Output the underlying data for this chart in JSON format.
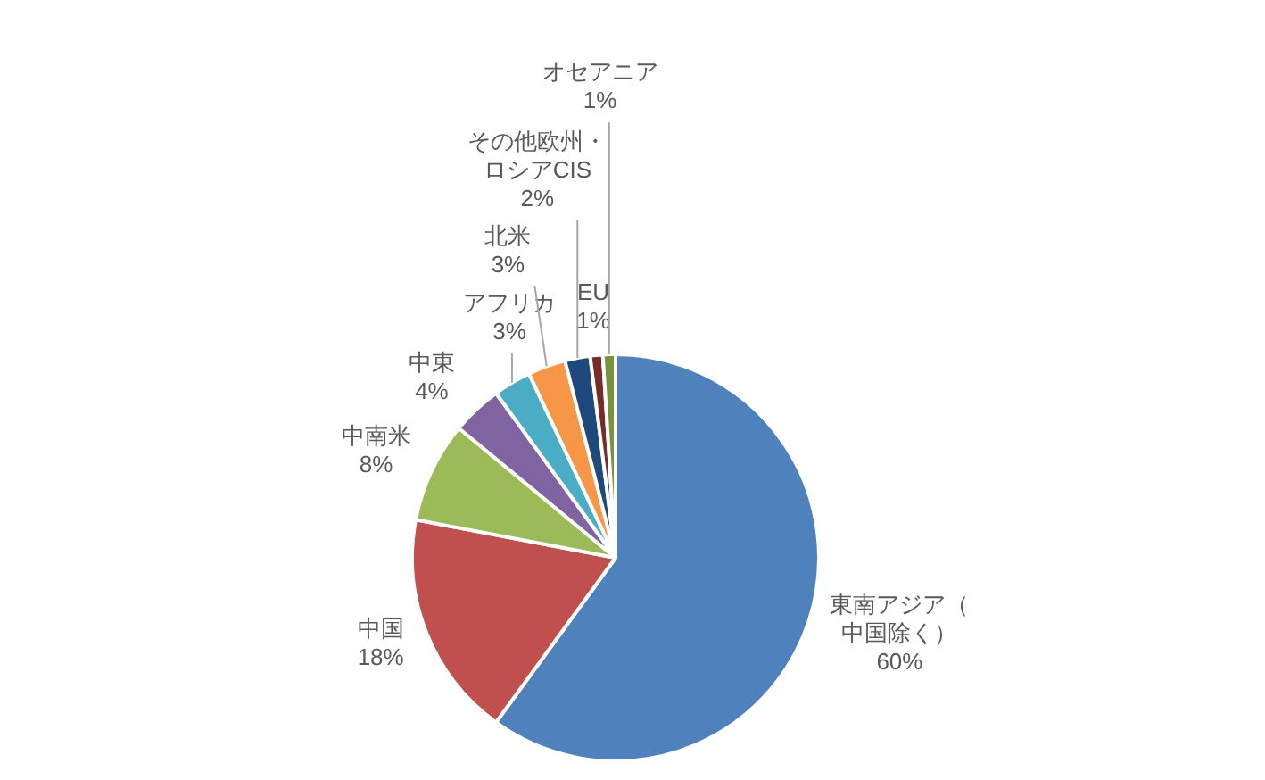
{
  "chart_data": {
    "type": "pie",
    "categories": [
      "東南アジア（中国除く）",
      "中国",
      "中南米",
      "中東",
      "アフリカ",
      "北米",
      "その他欧州・ロシアCIS",
      "EU",
      "オセアニア"
    ],
    "values": [
      60,
      18,
      8,
      4,
      3,
      3,
      2,
      1,
      1
    ],
    "value_labels": [
      "60%",
      "18%",
      "8%",
      "4%",
      "3%",
      "3%",
      "2%",
      "1%",
      "1%"
    ],
    "colors": [
      "#4f81bd",
      "#c0504d",
      "#9bbb59",
      "#8064a2",
      "#4bacc6",
      "#f79646",
      "#1f497d",
      "#772c2a",
      "#77933c"
    ],
    "legend": false
  }
}
